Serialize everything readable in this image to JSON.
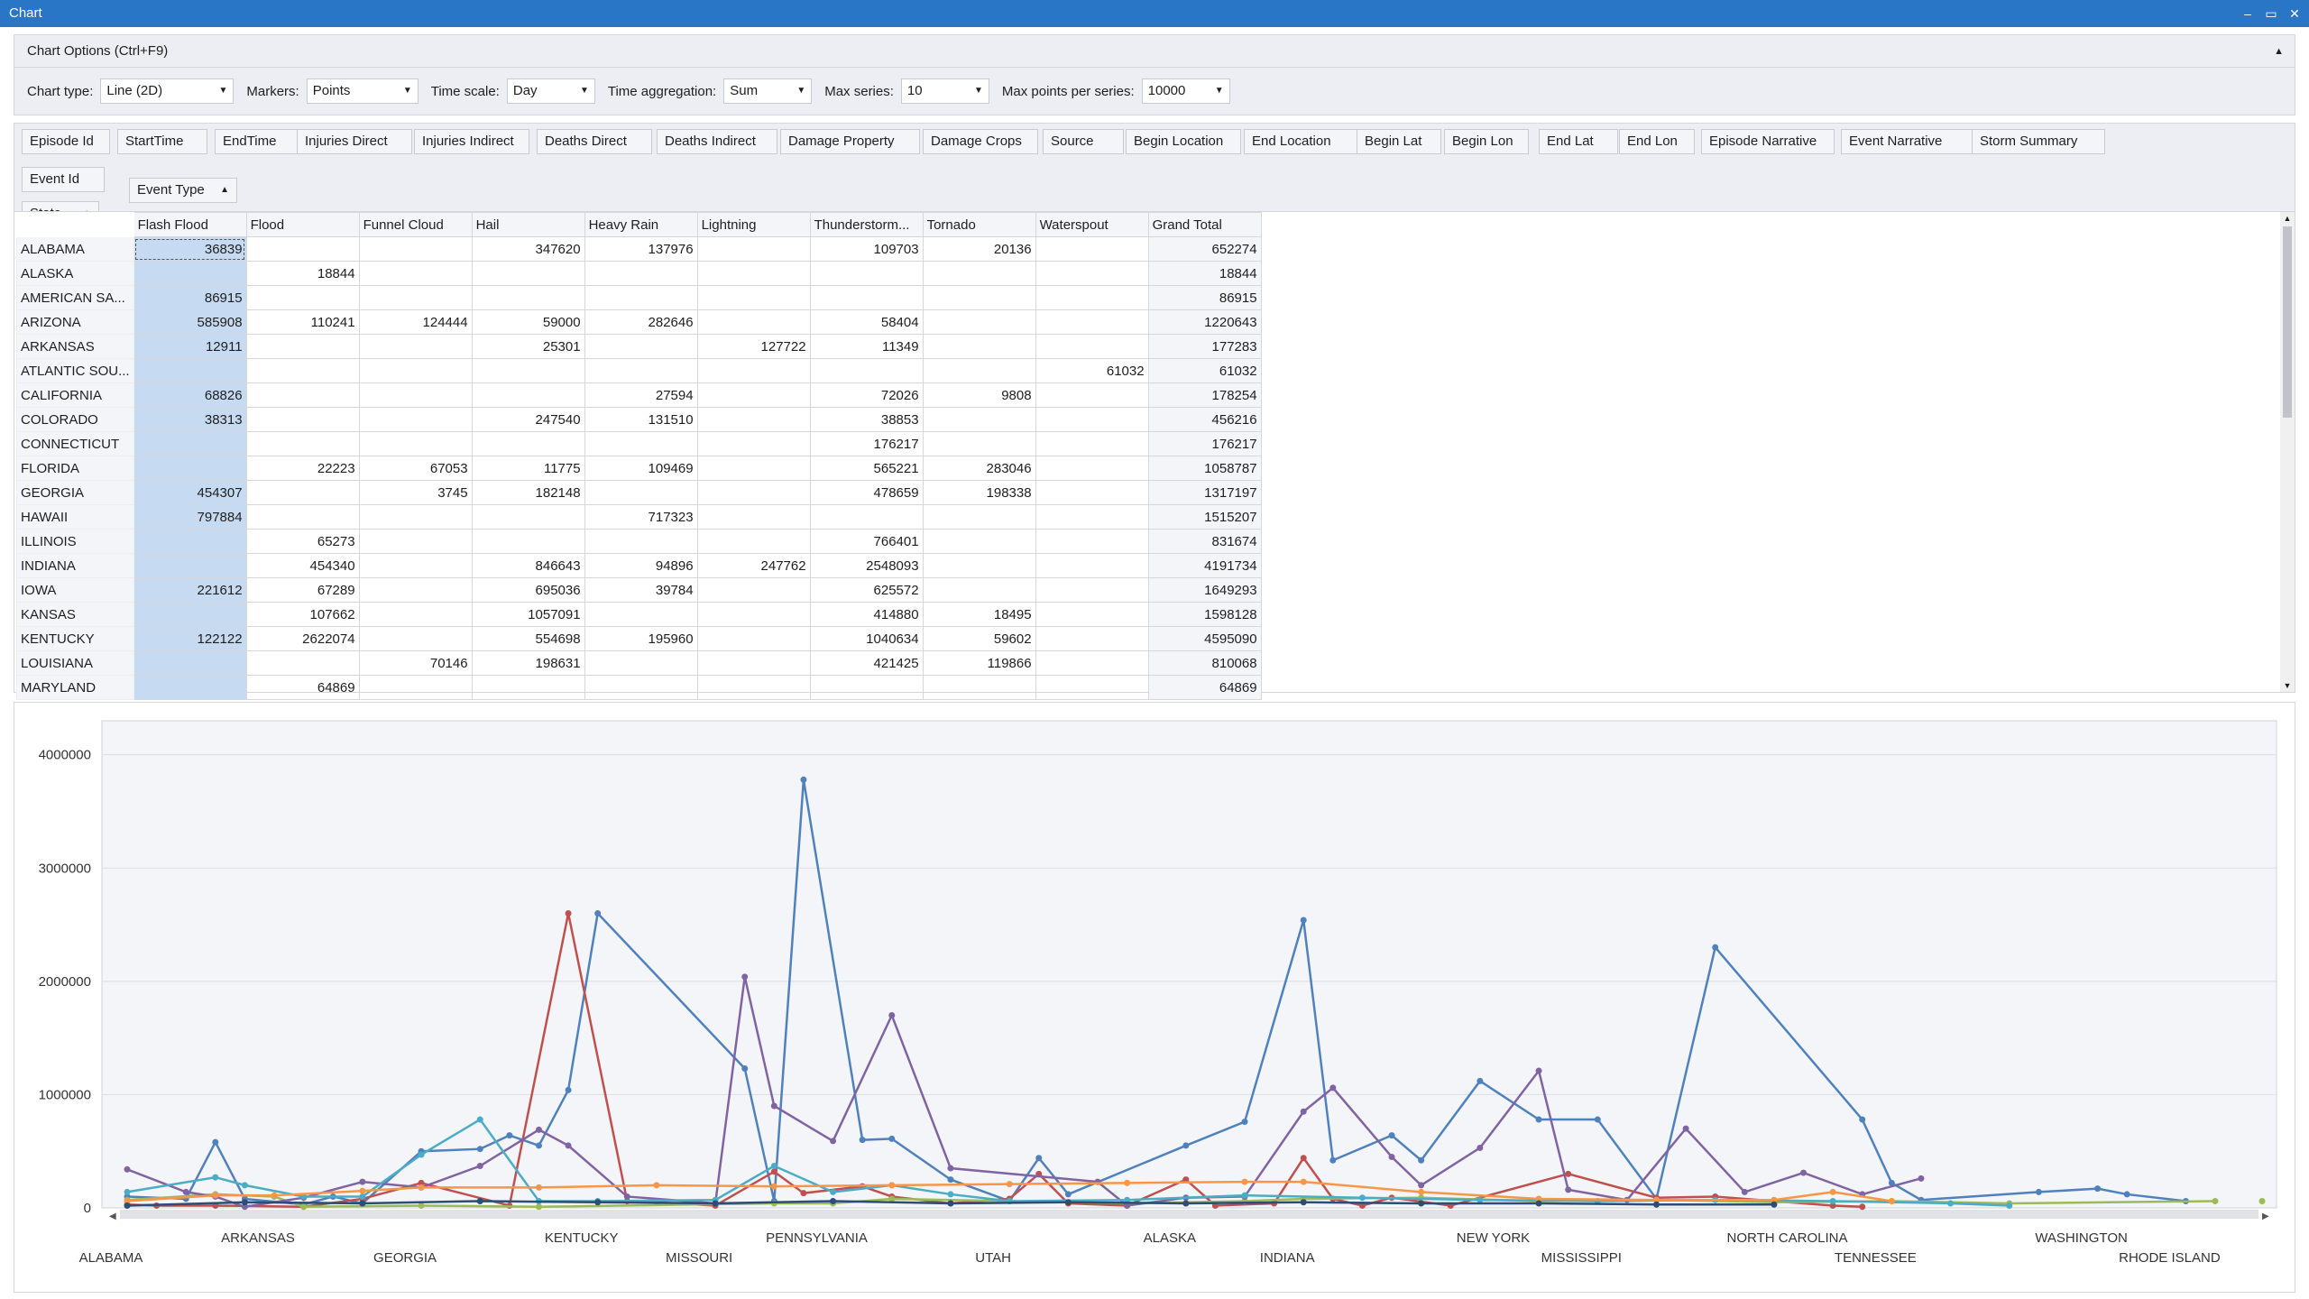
{
  "window": {
    "title": "Chart",
    "buttons": [
      "–",
      "▭",
      "✕"
    ]
  },
  "options": {
    "header": "Chart Options (Ctrl+F9)",
    "chart_type": {
      "label": "Chart type:",
      "value": "Line (2D)"
    },
    "markers": {
      "label": "Markers:",
      "value": "Points"
    },
    "time_scale": {
      "label": "Time scale:",
      "value": "Day"
    },
    "time_aggregation": {
      "label": "Time aggregation:",
      "value": "Sum"
    },
    "max_series": {
      "label": "Max series:",
      "value": "10"
    },
    "max_points": {
      "label": "Max points per series:",
      "value": "10000"
    }
  },
  "fields": [
    "Episode Id",
    "StartTime",
    "EndTime",
    "Injuries Direct",
    "Injuries Indirect",
    "Deaths Direct",
    "Deaths Indirect",
    "Damage Property",
    "Damage Crops",
    "Source",
    "Begin Location",
    "End Location",
    "Begin Lat",
    "Begin Lon",
    "End Lat",
    "End Lon",
    "Episode Narrative",
    "Event Narrative",
    "Storm Summary"
  ],
  "data_field": "Event Id",
  "column_field": "Event Type",
  "row_field": "State",
  "grid": {
    "columns": [
      "Flash Flood",
      "Flood",
      "Funnel Cloud",
      "Hail",
      "Heavy Rain",
      "Lightning",
      "Thunderstorm...",
      "Tornado",
      "Waterspout",
      "Grand Total"
    ],
    "rows": [
      {
        "state": "ALABAMA",
        "cells": [
          "36839",
          "",
          "",
          "347620",
          "137976",
          "",
          "109703",
          "20136",
          "",
          "652274"
        ]
      },
      {
        "state": "ALASKA",
        "cells": [
          "",
          "18844",
          "",
          "",
          "",
          "",
          "",
          "",
          "",
          "18844"
        ]
      },
      {
        "state": "AMERICAN SA...",
        "cells": [
          "86915",
          "",
          "",
          "",
          "",
          "",
          "",
          "",
          "",
          "86915"
        ]
      },
      {
        "state": "ARIZONA",
        "cells": [
          "585908",
          "110241",
          "124444",
          "59000",
          "282646",
          "",
          "58404",
          "",
          "",
          "1220643"
        ]
      },
      {
        "state": "ARKANSAS",
        "cells": [
          "12911",
          "",
          "",
          "25301",
          "",
          "127722",
          "11349",
          "",
          "",
          "177283"
        ]
      },
      {
        "state": "ATLANTIC SOU...",
        "cells": [
          "",
          "",
          "",
          "",
          "",
          "",
          "",
          "",
          "61032",
          "61032"
        ]
      },
      {
        "state": "CALIFORNIA",
        "cells": [
          "68826",
          "",
          "",
          "",
          "27594",
          "",
          "72026",
          "9808",
          "",
          "178254"
        ]
      },
      {
        "state": "COLORADO",
        "cells": [
          "38313",
          "",
          "",
          "247540",
          "131510",
          "",
          "38853",
          "",
          "",
          "456216"
        ]
      },
      {
        "state": "CONNECTICUT",
        "cells": [
          "",
          "",
          "",
          "",
          "",
          "",
          "176217",
          "",
          "",
          "176217"
        ]
      },
      {
        "state": "FLORIDA",
        "cells": [
          "",
          "22223",
          "67053",
          "11775",
          "109469",
          "",
          "565221",
          "283046",
          "",
          "1058787"
        ]
      },
      {
        "state": "GEORGIA",
        "cells": [
          "454307",
          "",
          "3745",
          "182148",
          "",
          "",
          "478659",
          "198338",
          "",
          "1317197"
        ]
      },
      {
        "state": "HAWAII",
        "cells": [
          "797884",
          "",
          "",
          "",
          "717323",
          "",
          "",
          "",
          "",
          "1515207"
        ]
      },
      {
        "state": "ILLINOIS",
        "cells": [
          "",
          "65273",
          "",
          "",
          "",
          "",
          "766401",
          "",
          "",
          "831674"
        ]
      },
      {
        "state": "INDIANA",
        "cells": [
          "",
          "454340",
          "",
          "846643",
          "94896",
          "247762",
          "2548093",
          "",
          "",
          "4191734"
        ]
      },
      {
        "state": "IOWA",
        "cells": [
          "221612",
          "67289",
          "",
          "695036",
          "39784",
          "",
          "625572",
          "",
          "",
          "1649293"
        ]
      },
      {
        "state": "KANSAS",
        "cells": [
          "",
          "107662",
          "",
          "1057091",
          "",
          "",
          "414880",
          "18495",
          "",
          "1598128"
        ]
      },
      {
        "state": "KENTUCKY",
        "cells": [
          "122122",
          "2622074",
          "",
          "554698",
          "195960",
          "",
          "1040634",
          "59602",
          "",
          "4595090"
        ]
      },
      {
        "state": "LOUISIANA",
        "cells": [
          "",
          "",
          "70146",
          "198631",
          "",
          "",
          "421425",
          "119866",
          "",
          "810068"
        ]
      },
      {
        "state": "MARYLAND",
        "cells": [
          "",
          "64869",
          "",
          "",
          "",
          "",
          "",
          "",
          "",
          "64869"
        ]
      }
    ]
  },
  "chart_data": {
    "type": "line",
    "ylim": [
      0,
      4300000
    ],
    "yticks": [
      "0",
      "1000000",
      "2000000",
      "3000000",
      "4000000"
    ],
    "xlabels_upper": [
      "ARKANSAS",
      "KENTUCKY",
      "PENNSYLVANIA",
      "ALASKA",
      "NEW YORK",
      "NORTH CAROLINA",
      "WASHINGTON"
    ],
    "xlabels_lower": [
      "ALABAMA",
      "GEORGIA",
      "MISSOURI",
      "UTAH",
      "INDIANA",
      "MISSISSIPPI",
      "TENNESSEE",
      "RHODE ISLAND"
    ],
    "n_points": 72,
    "series": [
      {
        "color": "#4f81bd",
        "values": [
          [
            0,
            100000
          ],
          [
            2,
            80000
          ],
          [
            3,
            580000
          ],
          [
            4,
            80000
          ],
          [
            6,
            30000
          ],
          [
            7,
            100000
          ],
          [
            8,
            40000
          ],
          [
            10,
            500000
          ],
          [
            12,
            520000
          ],
          [
            13,
            640000
          ],
          [
            14,
            550000
          ],
          [
            15,
            1040000
          ],
          [
            16,
            2600000
          ],
          [
            21,
            1230000
          ],
          [
            22,
            60000
          ],
          [
            23,
            3780000
          ],
          [
            25,
            600000
          ],
          [
            26,
            610000
          ],
          [
            28,
            250000
          ],
          [
            30,
            60000
          ],
          [
            31,
            440000
          ],
          [
            32,
            120000
          ],
          [
            36,
            550000
          ],
          [
            38,
            760000
          ],
          [
            40,
            2540000
          ],
          [
            41,
            420000
          ],
          [
            43,
            640000
          ],
          [
            44,
            420000
          ],
          [
            46,
            1120000
          ],
          [
            48,
            780000
          ],
          [
            50,
            780000
          ],
          [
            52,
            80000
          ],
          [
            54,
            2300000
          ],
          [
            59,
            780000
          ],
          [
            60,
            220000
          ],
          [
            61,
            70000
          ],
          [
            65,
            140000
          ],
          [
            67,
            170000
          ],
          [
            68,
            120000
          ],
          [
            70,
            60000
          ]
        ]
      },
      {
        "color": "#c0504d",
        "values": [
          [
            0,
            30000
          ],
          [
            1,
            20000
          ],
          [
            3,
            20000
          ],
          [
            6,
            10000
          ],
          [
            8,
            80000
          ],
          [
            10,
            220000
          ],
          [
            13,
            20000
          ],
          [
            15,
            2600000
          ],
          [
            17,
            60000
          ],
          [
            18,
            50000
          ],
          [
            20,
            20000
          ],
          [
            22,
            320000
          ],
          [
            23,
            130000
          ],
          [
            25,
            190000
          ],
          [
            26,
            100000
          ],
          [
            28,
            40000
          ],
          [
            30,
            80000
          ],
          [
            31,
            300000
          ],
          [
            32,
            40000
          ],
          [
            34,
            20000
          ],
          [
            36,
            250000
          ],
          [
            37,
            20000
          ],
          [
            39,
            40000
          ],
          [
            40,
            440000
          ],
          [
            41,
            80000
          ],
          [
            42,
            20000
          ],
          [
            43,
            90000
          ],
          [
            45,
            20000
          ],
          [
            49,
            300000
          ],
          [
            52,
            90000
          ],
          [
            54,
            100000
          ],
          [
            58,
            20000
          ],
          [
            59,
            10000
          ]
        ]
      },
      {
        "color": "#9bbb59",
        "values": [
          [
            0,
            70000
          ],
          [
            3,
            120000
          ],
          [
            5,
            100000
          ],
          [
            6,
            10000
          ],
          [
            10,
            20000
          ],
          [
            14,
            10000
          ],
          [
            22,
            40000
          ],
          [
            24,
            40000
          ],
          [
            26,
            80000
          ],
          [
            30,
            60000
          ],
          [
            34,
            40000
          ],
          [
            38,
            60000
          ],
          [
            40,
            80000
          ],
          [
            44,
            90000
          ],
          [
            48,
            60000
          ],
          [
            52,
            70000
          ],
          [
            56,
            50000
          ],
          [
            60,
            60000
          ],
          [
            64,
            40000
          ],
          [
            71,
            60000
          ]
        ]
      },
      {
        "color": "#8064a2",
        "values": [
          [
            0,
            340000
          ],
          [
            2,
            140000
          ],
          [
            3,
            100000
          ],
          [
            4,
            10000
          ],
          [
            6,
            90000
          ],
          [
            8,
            230000
          ],
          [
            10,
            180000
          ],
          [
            12,
            370000
          ],
          [
            14,
            690000
          ],
          [
            15,
            550000
          ],
          [
            17,
            100000
          ],
          [
            20,
            40000
          ],
          [
            21,
            2040000
          ],
          [
            22,
            900000
          ],
          [
            24,
            590000
          ],
          [
            26,
            1700000
          ],
          [
            28,
            350000
          ],
          [
            33,
            230000
          ],
          [
            34,
            20000
          ],
          [
            36,
            90000
          ],
          [
            38,
            100000
          ],
          [
            40,
            850000
          ],
          [
            41,
            1060000
          ],
          [
            43,
            450000
          ],
          [
            44,
            200000
          ],
          [
            46,
            530000
          ],
          [
            48,
            1210000
          ],
          [
            49,
            160000
          ],
          [
            51,
            70000
          ],
          [
            53,
            700000
          ],
          [
            55,
            140000
          ],
          [
            57,
            310000
          ],
          [
            59,
            120000
          ],
          [
            61,
            260000
          ]
        ]
      },
      {
        "color": "#4bacc6",
        "values": [
          [
            0,
            140000
          ],
          [
            3,
            270000
          ],
          [
            4,
            200000
          ],
          [
            6,
            100000
          ],
          [
            8,
            100000
          ],
          [
            10,
            470000
          ],
          [
            12,
            780000
          ],
          [
            14,
            60000
          ],
          [
            16,
            60000
          ],
          [
            20,
            70000
          ],
          [
            22,
            370000
          ],
          [
            24,
            140000
          ],
          [
            26,
            200000
          ],
          [
            28,
            120000
          ],
          [
            30,
            60000
          ],
          [
            34,
            70000
          ],
          [
            38,
            110000
          ],
          [
            42,
            90000
          ],
          [
            46,
            70000
          ],
          [
            50,
            60000
          ],
          [
            54,
            70000
          ],
          [
            58,
            60000
          ],
          [
            62,
            40000
          ],
          [
            64,
            20000
          ]
        ]
      },
      {
        "color": "#f79646",
        "values": [
          [
            0,
            60000
          ],
          [
            3,
            110000
          ],
          [
            5,
            110000
          ],
          [
            8,
            150000
          ],
          [
            10,
            180000
          ],
          [
            14,
            180000
          ],
          [
            18,
            200000
          ],
          [
            22,
            190000
          ],
          [
            26,
            200000
          ],
          [
            30,
            210000
          ],
          [
            34,
            220000
          ],
          [
            38,
            230000
          ],
          [
            40,
            230000
          ],
          [
            44,
            140000
          ],
          [
            48,
            80000
          ],
          [
            52,
            70000
          ],
          [
            56,
            70000
          ],
          [
            58,
            140000
          ],
          [
            60,
            60000
          ]
        ]
      },
      {
        "color": "#2c4d75",
        "values": [
          [
            0,
            20000
          ],
          [
            4,
            50000
          ],
          [
            8,
            40000
          ],
          [
            12,
            60000
          ],
          [
            16,
            50000
          ],
          [
            20,
            40000
          ],
          [
            24,
            60000
          ],
          [
            28,
            40000
          ],
          [
            32,
            50000
          ],
          [
            36,
            40000
          ],
          [
            40,
            50000
          ],
          [
            44,
            40000
          ],
          [
            48,
            40000
          ],
          [
            52,
            30000
          ],
          [
            56,
            30000
          ]
        ]
      }
    ]
  }
}
